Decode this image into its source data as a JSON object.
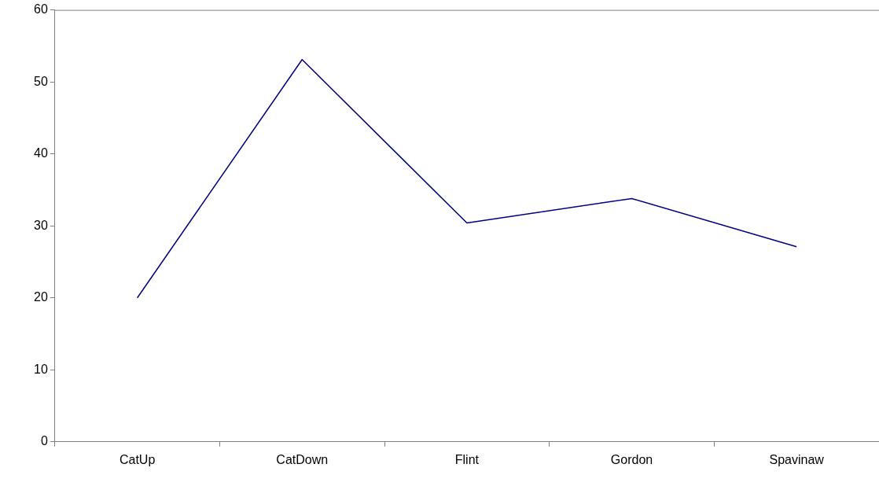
{
  "chart_data": {
    "type": "line",
    "categories": [
      "CatUp",
      "CatDown",
      "Flint",
      "Gordon",
      "Spavinaw"
    ],
    "series": [
      {
        "color": "#000080",
        "values": [
          20.0,
          53.1,
          30.4,
          33.8,
          27.1
        ]
      }
    ],
    "ylim": [
      0,
      60
    ],
    "yticks": [
      0,
      10,
      20,
      30,
      40,
      50,
      60
    ],
    "grid": false,
    "legend": false,
    "marker": "none",
    "line_style": "solid"
  }
}
